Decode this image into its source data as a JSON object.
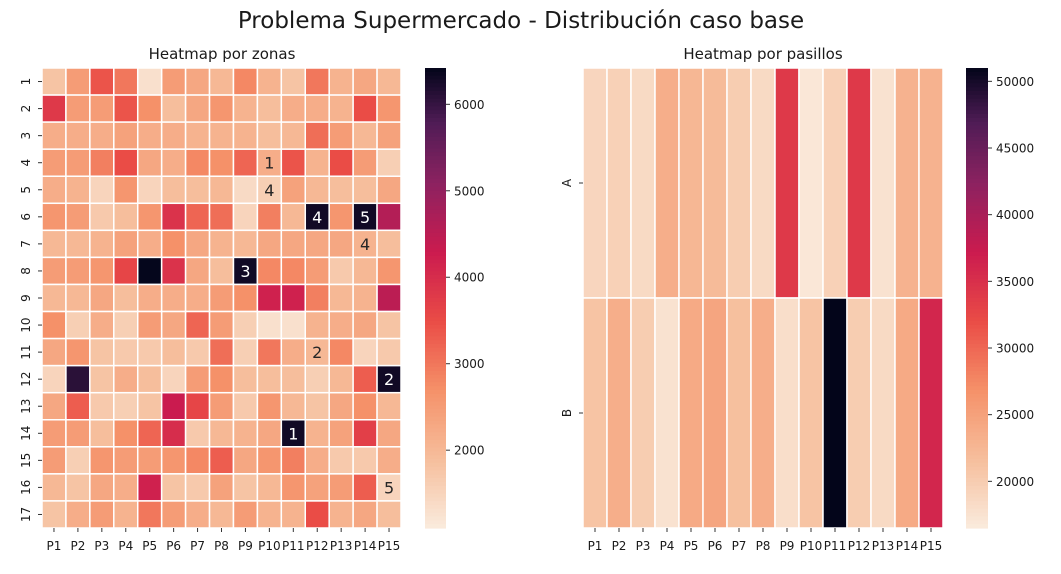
{
  "title": "Problema Supermercado - Distribución caso base",
  "chart_data": [
    {
      "type": "heatmap",
      "title": "Heatmap por zonas",
      "xlabel": "",
      "ylabel": "",
      "x_categories": [
        "P1",
        "P2",
        "P3",
        "P4",
        "P5",
        "P6",
        "P7",
        "P8",
        "P9",
        "P10",
        "P11",
        "P12",
        "P13",
        "P14",
        "P15"
      ],
      "y_categories": [
        "1",
        "2",
        "3",
        "4",
        "5",
        "6",
        "7",
        "8",
        "9",
        "10",
        "11",
        "12",
        "13",
        "14",
        "15",
        "16",
        "17"
      ],
      "values": [
        [
          1800,
          2500,
          3400,
          3000,
          1300,
          2500,
          2300,
          2000,
          2800,
          2100,
          1800,
          3000,
          2100,
          2300,
          2000
        ],
        [
          3800,
          2500,
          2500,
          3400,
          2700,
          1900,
          2300,
          2600,
          2100,
          1900,
          2200,
          2200,
          2100,
          3500,
          2600
        ],
        [
          2200,
          2200,
          2200,
          2400,
          2200,
          2200,
          2100,
          2100,
          2100,
          1900,
          2000,
          3100,
          2500,
          2000,
          2400
        ],
        [
          2500,
          2500,
          2900,
          3500,
          2300,
          2200,
          2800,
          2700,
          3200,
          2200,
          3400,
          2100,
          3500,
          2500,
          1600
        ],
        [
          2200,
          2100,
          1500,
          2600,
          1500,
          1900,
          1900,
          2000,
          1400,
          1600,
          2400,
          2000,
          1900,
          1900,
          2300
        ],
        [
          2600,
          2500,
          1700,
          1900,
          2600,
          3900,
          3200,
          3100,
          1500,
          2900,
          2000,
          6300,
          2600,
          6300,
          4600
        ],
        [
          2000,
          2000,
          2100,
          2400,
          2200,
          2700,
          2300,
          2100,
          2000,
          2300,
          2300,
          2300,
          2300,
          2100,
          1900
        ],
        [
          2500,
          2500,
          2600,
          3600,
          6400,
          3900,
          2300,
          1900,
          6300,
          2800,
          2800,
          2500,
          1700,
          2000,
          2600
        ],
        [
          2000,
          2000,
          2300,
          1900,
          2200,
          2200,
          2200,
          2500,
          2700,
          4200,
          4200,
          2900,
          2000,
          2100,
          4500
        ],
        [
          2700,
          1600,
          2200,
          1600,
          2500,
          2300,
          3200,
          2500,
          1600,
          1300,
          1300,
          2100,
          2200,
          2300,
          1800
        ],
        [
          2300,
          2600,
          1800,
          1700,
          1700,
          1900,
          1700,
          3100,
          1600,
          3000,
          2200,
          2000,
          2800,
          1500,
          1700
        ],
        [
          1500,
          6100,
          1800,
          2200,
          1900,
          1500,
          2500,
          2700,
          1900,
          1900,
          1900,
          1600,
          2000,
          3300,
          6300
        ],
        [
          2300,
          3300,
          1700,
          1600,
          1800,
          4300,
          3600,
          2500,
          1700,
          2600,
          2000,
          1800,
          2300,
          2700,
          2000
        ],
        [
          2500,
          2500,
          1900,
          2700,
          3200,
          4000,
          1700,
          2000,
          2100,
          2300,
          6300,
          2100,
          2400,
          3700,
          2300
        ],
        [
          2500,
          1600,
          2600,
          2500,
          2500,
          2600,
          2800,
          3300,
          2300,
          2600,
          2900,
          2200,
          1700,
          1700,
          2200
        ],
        [
          2000,
          1800,
          2300,
          2200,
          4200,
          1800,
          1700,
          2400,
          1800,
          2000,
          2600,
          2400,
          2500,
          3300,
          1500
        ],
        [
          1800,
          2200,
          2500,
          2100,
          3000,
          2500,
          2200,
          2000,
          2500,
          2100,
          2100,
          3500,
          2100,
          2300,
          1900
        ]
      ],
      "annotations": [
        {
          "row": 3,
          "col": 9,
          "text": "1"
        },
        {
          "row": 4,
          "col": 9,
          "text": "4"
        },
        {
          "row": 5,
          "col": 11,
          "text": "4"
        },
        {
          "row": 5,
          "col": 13,
          "text": "5"
        },
        {
          "row": 6,
          "col": 13,
          "text": "4"
        },
        {
          "row": 7,
          "col": 8,
          "text": "3"
        },
        {
          "row": 10,
          "col": 11,
          "text": "2"
        },
        {
          "row": 11,
          "col": 14,
          "text": "2"
        },
        {
          "row": 13,
          "col": 10,
          "text": "1"
        },
        {
          "row": 15,
          "col": 14,
          "text": "5"
        }
      ],
      "vmin": 1100,
      "vmax": 6420,
      "colorbar_ticks": [
        2000,
        3000,
        4000,
        5000,
        6000
      ],
      "colorbar_tick_labels": [
        "2000",
        "3000",
        "4000",
        "5000",
        "6000"
      ]
    },
    {
      "type": "heatmap",
      "title": "Heatmap por pasillos",
      "xlabel": "",
      "ylabel": "",
      "x_categories": [
        "P1",
        "P2",
        "P3",
        "P4",
        "P5",
        "P6",
        "P7",
        "P8",
        "P9",
        "P10",
        "P11",
        "P12",
        "P13",
        "P14",
        "P15"
      ],
      "y_categories": [
        "A",
        "B"
      ],
      "values": [
        [
          19000,
          19500,
          18500,
          23500,
          22500,
          22000,
          20000,
          18500,
          34000,
          17000,
          19500,
          34000,
          17500,
          23000,
          23000
        ],
        [
          21000,
          23500,
          20000,
          17500,
          24000,
          24500,
          21500,
          23500,
          18000,
          21000,
          51000,
          20000,
          18500,
          24000,
          36000
        ]
      ],
      "annotations": [],
      "vmin": 16500,
      "vmax": 51000,
      "colorbar_ticks": [
        20000,
        25000,
        30000,
        35000,
        40000,
        45000,
        50000
      ],
      "colorbar_tick_labels": [
        "20000",
        "25000",
        "30000",
        "35000",
        "40000",
        "45000",
        "50000"
      ]
    }
  ]
}
